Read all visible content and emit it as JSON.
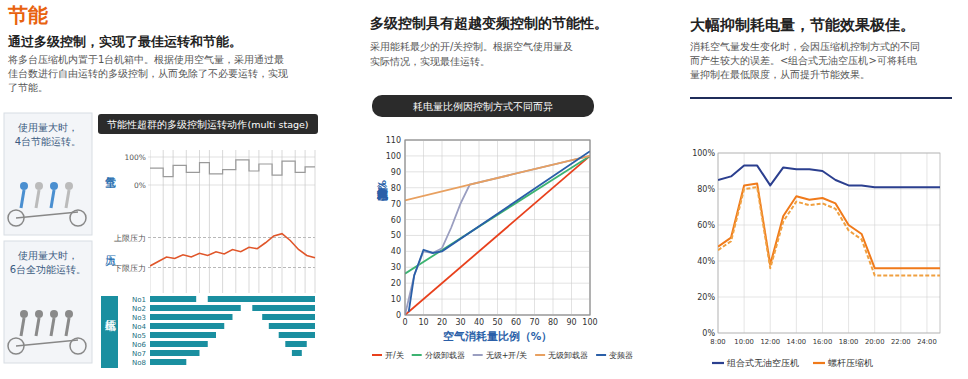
{
  "panels": [
    {
      "heading": "节能",
      "subheading": "通过多级控制，实现了最佳运转和节能。",
      "body": [
        "将多台压缩机内置于1台机箱中。根据使用空气量，采用通过最",
        "佳台数进行自由运转的多级控制，从而免除了不必要运转，实现",
        "了节能。"
      ],
      "illustrations": [
        [
          "使用量大时，",
          "4台节能运转。"
        ],
        [
          "使用量大时，",
          "6台全功能运转。"
        ]
      ]
    },
    {
      "subheading": "多级控制具有超越变频控制的节能性。",
      "body": [
        "采用能耗最少的开/关控制。根据空气使用量及",
        "实际情况，实现最佳运转。"
      ]
    },
    {
      "subheading": "大幅抑制耗电量，节能效果极佳。",
      "body": [
        "消耗空气量发生变化时，会因压缩机控制方式的不同",
        "而产生较大的误差。<组合式无油空压机>可将耗电",
        "量抑制在最低限度，从而提升节能效果。"
      ]
    }
  ],
  "chart_data": [
    {
      "type": "timing",
      "title": "节能性超群的多级控制运转动作(multi stage)",
      "xlim": [
        0,
        100
      ],
      "tick_labels": "y",
      "air": {
        "label": "空气量",
        "color": "#9a9a9a",
        "x": [
          0,
          8,
          14,
          22,
          30,
          36,
          44,
          52,
          60,
          66,
          74,
          80,
          88,
          94,
          100
        ],
        "values": [
          60,
          30,
          70,
          45,
          80,
          40,
          55,
          90,
          50,
          75,
          35,
          85,
          45,
          65,
          65
        ],
        "ylim": [
          0,
          100
        ],
        "yticks": [
          {
            "value": 100,
            "label": "100%"
          },
          {
            "value": 0,
            "label": "0%"
          }
        ]
      },
      "pressure": {
        "label": "压力",
        "color": "#e0562a",
        "x": [
          0,
          5,
          10,
          15,
          20,
          25,
          30,
          35,
          40,
          45,
          50,
          55,
          60,
          65,
          70,
          75,
          80,
          85,
          90,
          95,
          100
        ],
        "values": [
          3.2,
          3.8,
          4.4,
          4.2,
          4.7,
          4.4,
          4.9,
          4.6,
          5.1,
          4.8,
          5.4,
          5.1,
          5.7,
          5.5,
          6.3,
          7.2,
          7.5,
          6.6,
          5.4,
          4.6,
          4.3
        ],
        "ylim": [
          0,
          10
        ],
        "yticks": [
          {
            "value": 7,
            "label": "上限压力"
          },
          {
            "value": 3,
            "label": "下限压力"
          }
        ]
      },
      "compressors": {
        "label": "压缩机",
        "color": "#1a8fa0",
        "units": [
          {
            "name": "No1",
            "intervals": [
              [
                0,
                28
              ],
              [
                35,
                100
              ]
            ]
          },
          {
            "name": "No2",
            "intervals": [
              [
                0,
                55
              ],
              [
                62,
                100
              ]
            ]
          },
          {
            "name": "No3",
            "intervals": [
              [
                0,
                50
              ],
              [
                68,
                100
              ]
            ]
          },
          {
            "name": "No4",
            "intervals": [
              [
                0,
                45
              ],
              [
                72,
                100
              ]
            ]
          },
          {
            "name": "No5",
            "intervals": [
              [
                0,
                40
              ],
              [
                78,
                100
              ]
            ]
          },
          {
            "name": "No6",
            "intervals": [
              [
                0,
                35
              ],
              [
                82,
                95
              ]
            ]
          },
          {
            "name": "No7",
            "intervals": [
              [
                0,
                30
              ],
              [
                86,
                92
              ]
            ]
          },
          {
            "name": "No8",
            "intervals": [
              [
                0,
                22
              ]
            ]
          }
        ]
      }
    },
    {
      "type": "line",
      "title": "耗电量比例因控制方式不同而异",
      "x_label": "空气消耗量比例（%）",
      "y_label": "耗电量比例（%）",
      "xlim": [
        0,
        100
      ],
      "xticks": [
        0,
        10,
        20,
        30,
        40,
        50,
        60,
        70,
        80,
        90,
        100
      ],
      "ylim": [
        0,
        110
      ],
      "yticks": [
        0,
        10,
        20,
        30,
        40,
        50,
        60,
        70,
        80,
        90,
        100,
        110
      ],
      "grid": true,
      "legend": "bottom",
      "series": [
        {
          "name": "开/关",
          "color": "#e8401c",
          "x": [
            0,
            100
          ],
          "values": [
            0,
            100
          ]
        },
        {
          "name": "分级卸载器",
          "color": "#3cb371",
          "x": [
            0,
            100
          ],
          "values": [
            26,
            100
          ]
        },
        {
          "name": "无级+开/关",
          "color": "#9a9ec0",
          "x": [
            0,
            5,
            10,
            15,
            20,
            25,
            30,
            35,
            100
          ],
          "values": [
            0,
            25,
            40,
            39,
            42,
            55,
            70,
            82,
            100
          ]
        },
        {
          "name": "无级卸载器",
          "color": "#e8a060",
          "x": [
            0,
            35,
            100
          ],
          "values": [
            72,
            82,
            100
          ]
        },
        {
          "name": "变频器",
          "color": "#2a5fa8",
          "x": [
            2,
            5,
            10,
            15,
            20,
            100
          ],
          "values": [
            2,
            25,
            41,
            39,
            40,
            103
          ]
        }
      ]
    },
    {
      "type": "line",
      "x": [
        8,
        9,
        10,
        11,
        12,
        13,
        14,
        15,
        16,
        17,
        18,
        19,
        20,
        21,
        22,
        23,
        24,
        25
      ],
      "xlim": [
        8,
        25
      ],
      "xticks": [
        {
          "value": 8,
          "label": "8:00"
        },
        {
          "value": 10,
          "label": "10:00"
        },
        {
          "value": 12,
          "label": "12:00"
        },
        {
          "value": 14,
          "label": "14:00"
        },
        {
          "value": 16,
          "label": "16:00"
        },
        {
          "value": 18,
          "label": "18:00"
        },
        {
          "value": 20,
          "label": "20:00"
        },
        {
          "value": 22,
          "label": "22:00"
        },
        {
          "value": 24,
          "label": "24:00"
        }
      ],
      "ylim": [
        0,
        100
      ],
      "yticks": [
        {
          "value": 0,
          "label": "0%"
        },
        {
          "value": 20,
          "label": "20%"
        },
        {
          "value": 40,
          "label": "40%"
        },
        {
          "value": 60,
          "label": "60%"
        },
        {
          "value": 80,
          "label": "80%"
        },
        {
          "value": 100,
          "label": "100%"
        }
      ],
      "grid": true,
      "legend": "bottom",
      "series": [
        {
          "name": "组合式无油空压机",
          "color": "#2b3f8f",
          "values": [
            85,
            87,
            93,
            93,
            82,
            92,
            91,
            91,
            90,
            85,
            82,
            82,
            81,
            81,
            81,
            81,
            81,
            81
          ]
        },
        {
          "name": "螺杆压缩机",
          "color": "#f07a1a",
          "values": [
            48,
            53,
            82,
            83,
            38,
            65,
            76,
            74,
            75,
            72,
            60,
            55,
            36,
            36,
            36,
            36,
            36,
            36
          ]
        },
        {
          "color": "#f0a040",
          "line_style": "dashed",
          "values": [
            46,
            51,
            80,
            81,
            36,
            62,
            73,
            71,
            72,
            69,
            57,
            52,
            32,
            32,
            32,
            32,
            32,
            32
          ]
        }
      ]
    }
  ]
}
